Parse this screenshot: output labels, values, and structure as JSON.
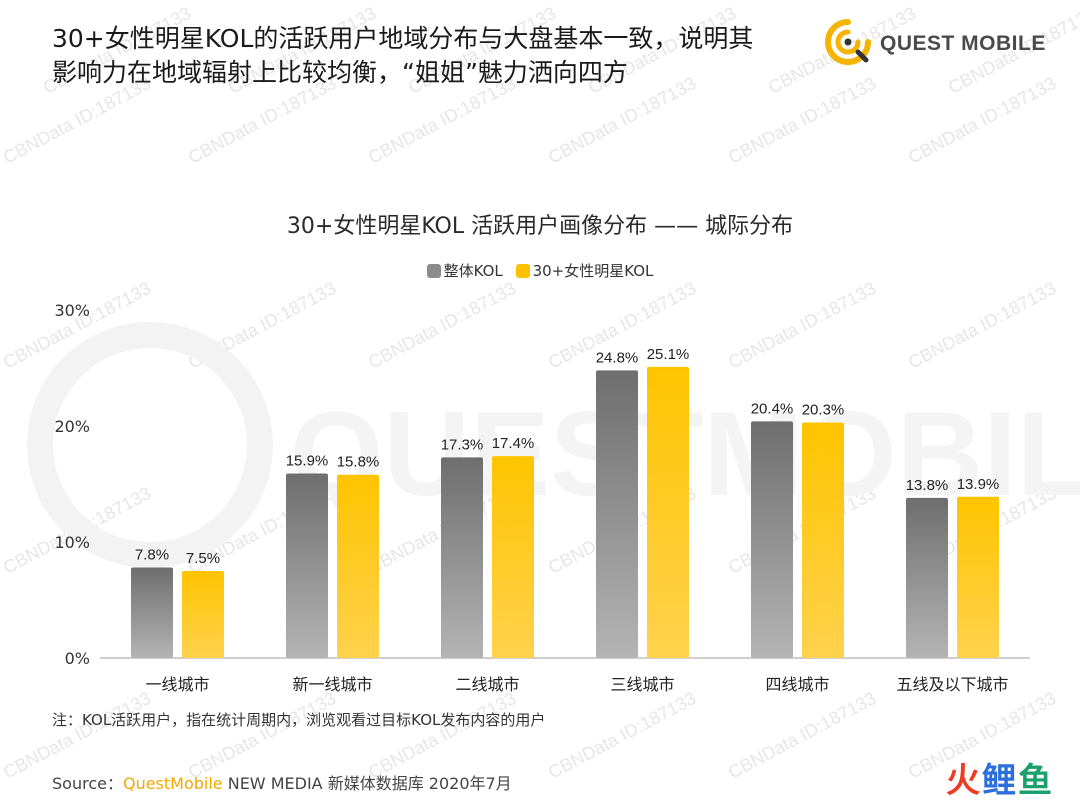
{
  "headline": {
    "line1": "30+女性明星KOL的活跃用户地域分布与大盘基本一致，说明其",
    "line2": "影响力在地域辐射上比较均衡，“姐姐”魅力洒向四方"
  },
  "logo": {
    "text": "QUEST MOBILE",
    "accent": "#f5b400"
  },
  "watermark": {
    "text": "CBNData ID:187133",
    "background_brand": "QUESTMOBILE"
  },
  "chart_data": {
    "type": "bar",
    "title": "30+女性明星KOL 活跃用户画像分布 —— 城际分布",
    "categories": [
      "一线城市",
      "新一线城市",
      "二线城市",
      "三线城市",
      "四线城市",
      "五线及以下城市"
    ],
    "series": [
      {
        "name": "整体KOL",
        "values": [
          7.8,
          15.9,
          17.3,
          24.8,
          20.4,
          13.8
        ],
        "labels": [
          "7.8%",
          "15.9%",
          "17.3%",
          "24.8%",
          "20.4%",
          "13.8%"
        ],
        "color": "#8c8c8c"
      },
      {
        "name": "30+女性明星KOL",
        "values": [
          7.5,
          15.8,
          17.4,
          25.1,
          20.3,
          13.9
        ],
        "labels": [
          "7.5%",
          "15.8%",
          "17.4%",
          "25.1%",
          "20.3%",
          "13.9%"
        ],
        "color": "#ffc000"
      }
    ],
    "y_ticks": [
      "0%",
      "10%",
      "20%",
      "30%"
    ],
    "ylim": [
      0,
      30
    ],
    "legend_position": "top-center",
    "grid": false
  },
  "footnote": "注：KOL活跃用户，指在统计周期内，浏览观看过目标KOL发布内容的用户",
  "source": {
    "prefix": "Source：",
    "brand": "QuestMobile",
    "rest": " NEW MEDIA 新媒体数据库 2020年7月"
  },
  "corner_logo": {
    "c1": "火",
    "c2": "鲤",
    "c3": "鱼"
  }
}
